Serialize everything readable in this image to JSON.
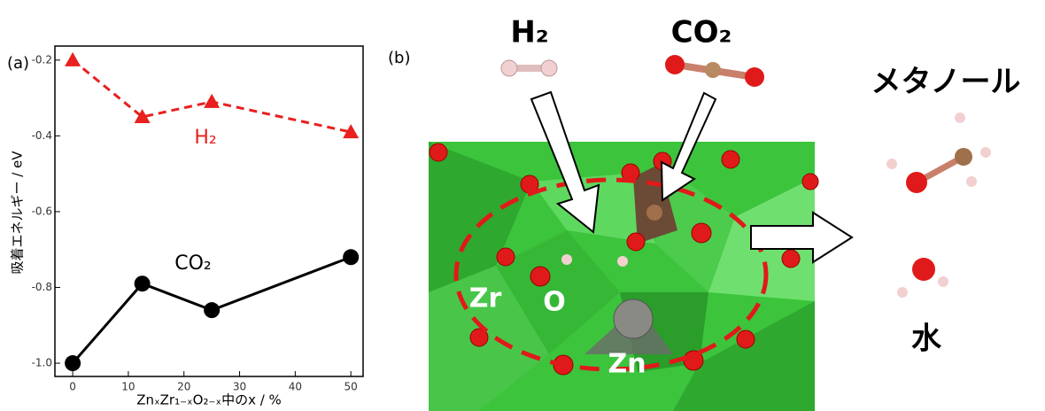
{
  "chart_data": {
    "type": "line",
    "panel_label": "(a)",
    "xlabel": "ZnₓZr₁₋ₓO₂₋ₓ中のx / %",
    "ylabel": "吸着エネルギー / eV",
    "xlim": [
      -3.2,
      52.2
    ],
    "xticks": [
      0,
      10,
      20,
      30,
      40,
      50
    ],
    "ylim": [
      -1.035,
      -0.163
    ],
    "yticks": [
      {
        "value": -1,
        "label": "-1.0"
      },
      -0.8,
      -0.6,
      -0.4,
      -0.2
    ],
    "grid": false,
    "series": [
      {
        "name": "H₂",
        "color": "#e8201e",
        "dashed": true,
        "marker": "triangle",
        "x": [
          0,
          12.5,
          25,
          50
        ],
        "values": [
          -0.2,
          -0.35,
          -0.31,
          -0.39
        ]
      },
      {
        "name": "CO₂",
        "color": "#000000",
        "dashed": false,
        "marker": "circle",
        "x": [
          0,
          12.5,
          25,
          50
        ],
        "values": [
          -1.0,
          -0.79,
          -0.86,
          -0.72
        ]
      }
    ]
  },
  "illustration": {
    "panel_label": "(b)",
    "h2": "H₂",
    "co2": "CO₂",
    "methanol": "メタノール",
    "water": "水",
    "zr": "Zr",
    "o": "O",
    "zn": "Zn"
  }
}
